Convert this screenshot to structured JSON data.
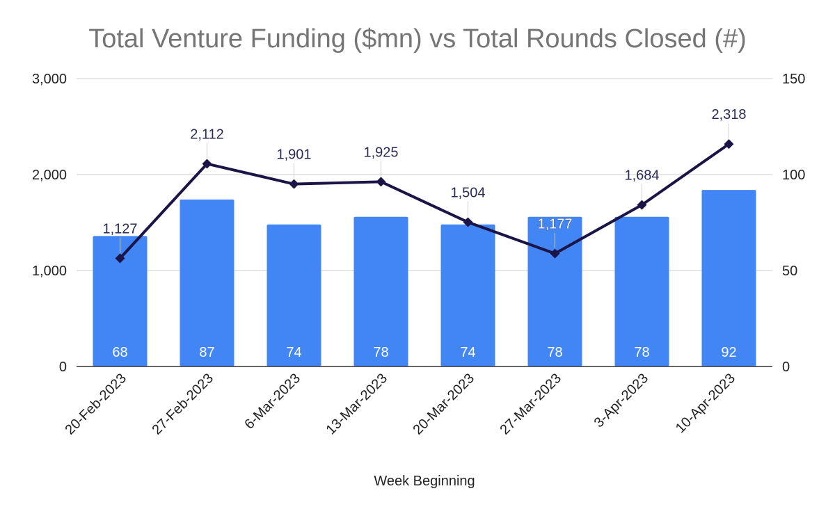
{
  "chart_data": {
    "type": "bar+line",
    "title": "Total Venture Funding ($mn) vs Total Rounds Closed (#)",
    "xlabel": "Week Beginning",
    "categories": [
      "20-Feb-2023",
      "27-Feb-2023",
      "6-Mar-2023",
      "13-Mar-2023",
      "20-Mar-2023",
      "27-Mar-2023",
      "3-Apr-2023",
      "10-Apr-2023"
    ],
    "series": [
      {
        "name": "Total Rounds Closed (#)",
        "type": "bar",
        "axis": "right",
        "color": "#4285f4",
        "values": [
          68,
          87,
          74,
          78,
          74,
          78,
          78,
          92
        ],
        "labels": [
          "68",
          "87",
          "74",
          "78",
          "74",
          "78",
          "78",
          "92"
        ]
      },
      {
        "name": "Total Venture Funding ($mn)",
        "type": "line",
        "axis": "left",
        "color": "#1b1446",
        "values": [
          1127,
          2112,
          1901,
          1925,
          1504,
          1177,
          1684,
          2318
        ],
        "labels": [
          "1,127",
          "2,112",
          "1,901",
          "1,925",
          "1,504",
          "1,177",
          "1,684",
          "2,318"
        ]
      }
    ],
    "y_left": {
      "min": 0,
      "max": 3000,
      "ticks": [
        0,
        1000,
        2000,
        3000
      ],
      "tick_labels": [
        "0",
        "1,000",
        "2,000",
        "3,000"
      ]
    },
    "y_right": {
      "min": 0,
      "max": 150,
      "ticks": [
        0,
        50,
        100,
        150
      ],
      "tick_labels": [
        "0",
        "50",
        "100",
        "150"
      ]
    },
    "grid": true,
    "legend": "none"
  }
}
